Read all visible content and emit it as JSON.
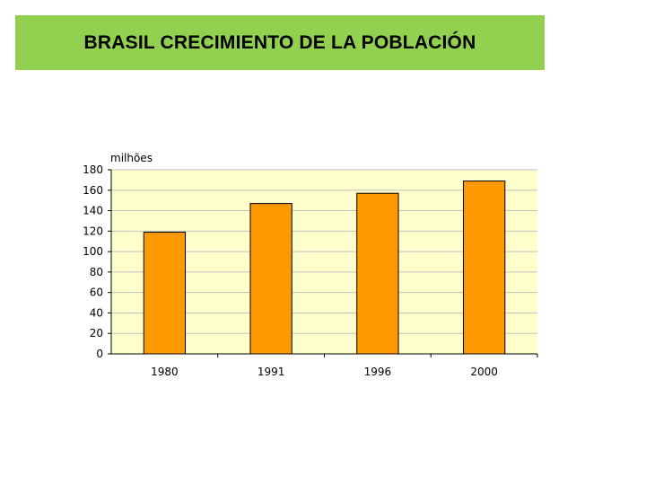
{
  "header": {
    "title": "BRASIL CRECIMIENTO DE LA POBLACIÓN"
  },
  "chart_data": {
    "type": "bar",
    "title": "",
    "xlabel": "",
    "ylabel": "milhões",
    "categories": [
      "1980",
      "1991",
      "1996",
      "2000"
    ],
    "values": [
      119,
      147,
      157,
      169
    ],
    "ylim": [
      0,
      180
    ],
    "yticks": [
      0,
      20,
      40,
      60,
      80,
      100,
      120,
      140,
      160,
      180
    ],
    "grid": true,
    "legend": "none",
    "colors": {
      "bar_fill": "#ff9900",
      "bar_stroke": "#000000",
      "plot_background": "#ffffcc",
      "grid": "#c0c0c0",
      "title_bar": "#92d050"
    }
  }
}
